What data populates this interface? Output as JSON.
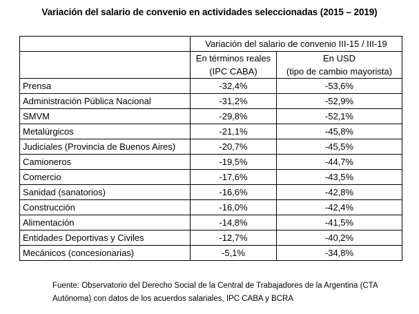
{
  "title": "Variación del salario de convenio en actividades seleccionadas (2015 – 2019)",
  "table": {
    "group_header": "Variación del salario de convenio III-15 / III-19",
    "col_real": {
      "line1": "En términos reales",
      "line2": "(IPC CABA)"
    },
    "col_usd": {
      "line1": "En USD",
      "line2": "(tipo de cambio mayorista)"
    },
    "rows": [
      {
        "label": "Prensa",
        "real": "-32,4%",
        "usd": "-53,6%"
      },
      {
        "label": "Administración Pública Nacional",
        "real": "-31,2%",
        "usd": "-52,9%"
      },
      {
        "label": "SMVM",
        "real": "-29,8%",
        "usd": "-52,1%"
      },
      {
        "label": "Metalúrgicos",
        "real": "-21,1%",
        "usd": "-45,8%"
      },
      {
        "label": "Judiciales (Provincia de Buenos Aires)",
        "real": "-20,7%",
        "usd": "-45,5%"
      },
      {
        "label": "Camioneros",
        "real": "-19,5%",
        "usd": "-44,7%"
      },
      {
        "label": "Comercio",
        "real": "-17,6%",
        "usd": "-43,5%"
      },
      {
        "label": "Sanidad (sanatorios)",
        "real": "-16,6%",
        "usd": "-42,8%"
      },
      {
        "label": "Construcción",
        "real": "-16,0%",
        "usd": "-42,4%"
      },
      {
        "label": "Alimentación",
        "real": "-14,8%",
        "usd": "-41,5%"
      },
      {
        "label": "Entidades Deportivas y Civiles",
        "real": "-12,7%",
        "usd": "-40,2%"
      },
      {
        "label": "Mecánicos (concesionarias)",
        "real": "-5,1%",
        "usd": "-34,8%"
      }
    ]
  },
  "footer": "Fuente: Observatorio del Derecho Social de la Central de Trabajadores de la Argentina (CTA Autónoma) con datos de los acuerdos salariales, IPC CABA y BCRA"
}
